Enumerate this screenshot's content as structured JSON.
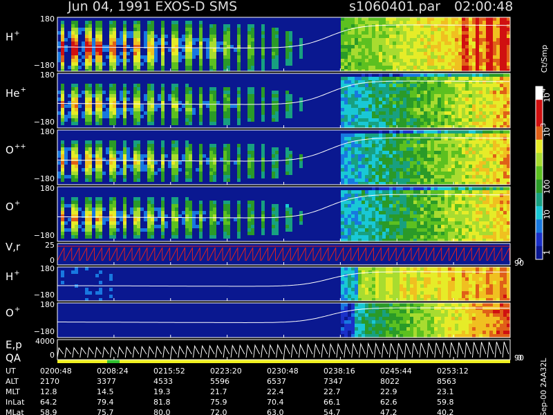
{
  "header": {
    "title": "Jun 04, 1991   EXOS-D SMS",
    "file": "s1060401.par",
    "time": "02:00:48"
  },
  "panels": [
    {
      "label": "H",
      "sup": "+",
      "top": "180",
      "bottom": "−180"
    },
    {
      "label": "He",
      "sup": "+",
      "top": "180",
      "bottom": "−180"
    },
    {
      "label": "O",
      "sup": "++",
      "top": "180",
      "bottom": "−180"
    },
    {
      "label": "O",
      "sup": "+",
      "top": "180",
      "bottom": "−180"
    },
    {
      "label": "V,r",
      "top": "25",
      "bottom": "0",
      "right_top": "90",
      "right_bottom": "0"
    },
    {
      "label": "H",
      "sup": "+",
      "top": "180",
      "bottom": "−180"
    },
    {
      "label": "O",
      "sup": "+",
      "top": "180",
      "bottom": "−180"
    },
    {
      "label": "E,p",
      "label2": "QA",
      "top": "4000",
      "bottom": "0",
      "right_top": "90",
      "right_bottom": "0"
    }
  ],
  "colorbar": {
    "unit": "Ct/Smp",
    "ticks": [
      {
        "base": "10",
        "exp": "4"
      },
      {
        "base": "10",
        "exp": "3"
      },
      {
        "label": "100"
      },
      {
        "label": "10"
      },
      {
        "label": "1"
      }
    ]
  },
  "table": {
    "rows": [
      [
        "UT",
        "0200:48",
        "0208:24",
        "0215:52",
        "0223:20",
        "0230:48",
        "0238:16",
        "0245:44",
        "0253:12"
      ],
      [
        "ALT",
        "2170",
        "3377",
        "4533",
        "5596",
        "6537",
        "7347",
        "8022",
        "8563"
      ],
      [
        "MLT",
        "12.8",
        "14.5",
        "19.3",
        "21.7",
        "22.4",
        "22.7",
        "22.9",
        "23.1"
      ],
      [
        "InLat",
        "64.2",
        "79.4",
        "81.8",
        "75.9",
        "70.4",
        "66.1",
        "62.6",
        "59.8"
      ],
      [
        "MLat",
        "58.9",
        "75.7",
        "80.0",
        "72.0",
        "63.0",
        "54.7",
        "47.2",
        "40.2"
      ]
    ]
  },
  "footer": "Sep-00 2AA32L"
}
